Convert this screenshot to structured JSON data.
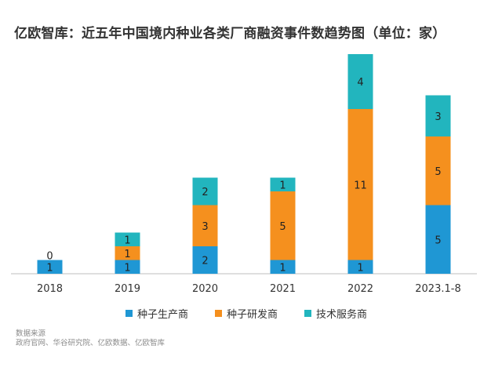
{
  "chart_data": {
    "type": "bar",
    "stacked": true,
    "title": "亿欧智库：近五年中国境内种业各类厂商融资事件数趋势图（单位：家）",
    "categories": [
      "2018",
      "2019",
      "2020",
      "2021",
      "2022",
      "2023.1-8"
    ],
    "category_labels": [
      "2018",
      "2019",
      "2020",
      "2021",
      "2022",
      "2023.1-8"
    ],
    "series": [
      {
        "name": "种子生产商",
        "color": "#1f97d4",
        "values": [
          1,
          1,
          2,
          1,
          1,
          5
        ]
      },
      {
        "name": "种子研发商",
        "color": "#f5901e",
        "values": [
          0,
          1,
          3,
          5,
          11,
          5
        ]
      },
      {
        "name": "技术服务商",
        "color": "#22b5be",
        "values": [
          0,
          1,
          2,
          1,
          4,
          3
        ]
      }
    ],
    "segment_labels": [
      [
        "1",
        "1",
        "2",
        "1",
        "1",
        "5"
      ],
      [
        "0",
        "1",
        "3",
        "5",
        "11",
        "5"
      ],
      [
        "",
        "1",
        "2",
        "1",
        "4",
        "3"
      ]
    ],
    "ylim": [
      0,
      16
    ],
    "legend_position": "bottom"
  },
  "source": {
    "label": "数据来源",
    "text": "政府官网、华谷研究院、亿欧数据、亿欧智库"
  }
}
